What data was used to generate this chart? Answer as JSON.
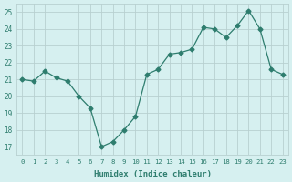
{
  "x": [
    0,
    1,
    2,
    3,
    4,
    5,
    6,
    7,
    8,
    9,
    10,
    11,
    12,
    13,
    14,
    15,
    16,
    17,
    18,
    19,
    20,
    21,
    22,
    23
  ],
  "y": [
    21.0,
    20.9,
    21.5,
    21.1,
    20.9,
    20.0,
    19.3,
    17.0,
    17.3,
    18.0,
    18.8,
    21.3,
    21.6,
    22.5,
    22.6,
    22.8,
    24.1,
    24.0,
    23.5,
    24.2,
    25.1,
    24.0,
    21.6,
    21.3
  ],
  "xlim": [
    -0.5,
    23.5
  ],
  "ylim": [
    16.5,
    25.5
  ],
  "yticks": [
    17,
    18,
    19,
    20,
    21,
    22,
    23,
    24,
    25
  ],
  "xticks": [
    0,
    1,
    2,
    3,
    4,
    5,
    6,
    7,
    8,
    9,
    10,
    11,
    12,
    13,
    14,
    15,
    16,
    17,
    18,
    19,
    20,
    21,
    22,
    23
  ],
  "xlabel": "Humidex (Indice chaleur)",
  "line_color": "#2e7d6e",
  "marker": "D",
  "marker_size": 2.5,
  "bg_color": "#d6f0f0",
  "grid_color": "#b8d0d0",
  "tick_color": "#2e7d6e",
  "label_color": "#2e7d6e"
}
